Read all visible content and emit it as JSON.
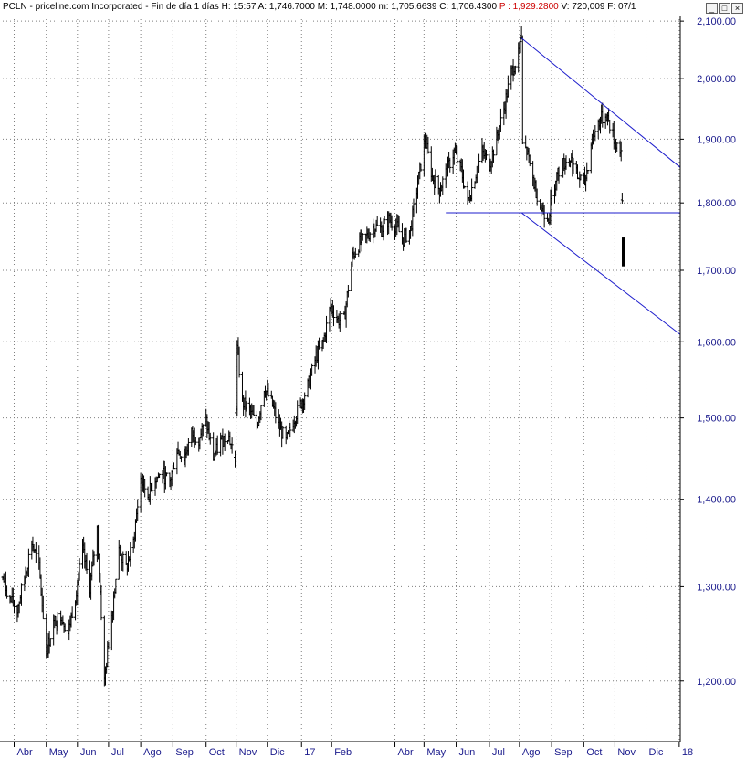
{
  "titlebar": {
    "symbol": "PCLN",
    "company": "priceline.com Incorporated",
    "period": "Fin de día 1 días",
    "hour_label": "H:",
    "hour": "15:57",
    "a_label": "A:",
    "a": "1,746.7000",
    "m_label": "M:",
    "m": "1,748.0000",
    "mm_label": "m:",
    "mm": "1,705.6639",
    "c_label": "C:",
    "c": "1,706.4300",
    "p_label": "P :",
    "p": "1,929.2800",
    "v_label": "V:",
    "v": "720,009",
    "f_label": "F:",
    "f": "07/1",
    "buttons": [
      "_",
      "□",
      "×"
    ]
  },
  "colors": {
    "axis_text": "#1a1a8c",
    "grid": "#7f7f7f",
    "price": "#000000",
    "trendline": "#1c1ccc",
    "background": "#ffffff"
  },
  "chart_data": {
    "type": "line",
    "subtype": "daily OHLC bars",
    "y_scale": "log",
    "ylim": [
      1140,
      2110
    ],
    "yticks": [
      {
        "value": 1200,
        "label": "1,200.00"
      },
      {
        "value": 1300,
        "label": "1,300.00"
      },
      {
        "value": 1400,
        "label": "1,400.00"
      },
      {
        "value": 1500,
        "label": "1,500.00"
      },
      {
        "value": 1600,
        "label": "1,600.00"
      },
      {
        "value": 1700,
        "label": "1,700.00"
      },
      {
        "value": 1800,
        "label": "1,800.00"
      },
      {
        "value": 1900,
        "label": "1,900.00"
      },
      {
        "value": 2000,
        "label": "2,000.00"
      },
      {
        "value": 2100,
        "label": "2,100.00"
      }
    ],
    "xlim": [
      "2016-03-21",
      "2018-01-03"
    ],
    "xticks": [
      {
        "date": "2016-04-01",
        "label": "Abr"
      },
      {
        "date": "2016-05-02",
        "label": "May"
      },
      {
        "date": "2016-06-01",
        "label": "Jun"
      },
      {
        "date": "2016-07-01",
        "label": "Jul"
      },
      {
        "date": "2016-08-01",
        "label": "Ago"
      },
      {
        "date": "2016-09-01",
        "label": "Sep"
      },
      {
        "date": "2016-10-03",
        "label": "Oct"
      },
      {
        "date": "2016-11-01",
        "label": "Nov"
      },
      {
        "date": "2016-12-01",
        "label": "Dic"
      },
      {
        "date": "2017-01-03",
        "label": "17"
      },
      {
        "date": "2017-02-01",
        "label": "Feb"
      },
      {
        "date": "2017-04-03",
        "label": "Abr"
      },
      {
        "date": "2017-05-01",
        "label": "May"
      },
      {
        "date": "2017-06-01",
        "label": "Jun"
      },
      {
        "date": "2017-07-03",
        "label": "Jul"
      },
      {
        "date": "2017-08-01",
        "label": "Ago"
      },
      {
        "date": "2017-09-01",
        "label": "Sep"
      },
      {
        "date": "2017-10-02",
        "label": "Oct"
      },
      {
        "date": "2017-11-01",
        "label": "Nov"
      },
      {
        "date": "2017-12-01",
        "label": "Dic"
      },
      {
        "date": "2018-01-02",
        "label": "18"
      }
    ],
    "grid": true,
    "series": [
      {
        "points": [
          [
            "2016-03-21",
            1310
          ],
          [
            "2016-03-28",
            1285
          ],
          [
            "2016-04-04",
            1275
          ],
          [
            "2016-04-11",
            1310
          ],
          [
            "2016-04-18",
            1350
          ],
          [
            "2016-04-25",
            1320
          ],
          [
            "2016-05-02",
            1230
          ],
          [
            "2016-05-09",
            1260
          ],
          [
            "2016-05-16",
            1270
          ],
          [
            "2016-05-23",
            1250
          ],
          [
            "2016-05-30",
            1290
          ],
          [
            "2016-06-06",
            1340
          ],
          [
            "2016-06-13",
            1300
          ],
          [
            "2016-06-20",
            1365
          ],
          [
            "2016-06-27",
            1200
          ],
          [
            "2016-07-04",
            1270
          ],
          [
            "2016-07-11",
            1340
          ],
          [
            "2016-07-18",
            1320
          ],
          [
            "2016-07-25",
            1350
          ],
          [
            "2016-08-01",
            1425
          ],
          [
            "2016-08-08",
            1405
          ],
          [
            "2016-08-15",
            1425
          ],
          [
            "2016-08-22",
            1430
          ],
          [
            "2016-08-29",
            1420
          ],
          [
            "2016-09-05",
            1460
          ],
          [
            "2016-09-12",
            1450
          ],
          [
            "2016-09-19",
            1480
          ],
          [
            "2016-09-26",
            1475
          ],
          [
            "2016-10-03",
            1495
          ],
          [
            "2016-10-10",
            1450
          ],
          [
            "2016-10-17",
            1470
          ],
          [
            "2016-10-24",
            1480
          ],
          [
            "2016-10-31",
            1450
          ],
          [
            "2016-11-02",
            1590
          ],
          [
            "2016-11-07",
            1520
          ],
          [
            "2016-11-14",
            1510
          ],
          [
            "2016-11-21",
            1490
          ],
          [
            "2016-11-28",
            1540
          ],
          [
            "2016-12-05",
            1520
          ],
          [
            "2016-12-12",
            1490
          ],
          [
            "2016-12-19",
            1470
          ],
          [
            "2016-12-27",
            1500
          ],
          [
            "2017-01-03",
            1520
          ],
          [
            "2017-01-10",
            1545
          ],
          [
            "2017-01-17",
            1580
          ],
          [
            "2017-01-24",
            1600
          ],
          [
            "2017-01-31",
            1650
          ],
          [
            "2017-02-07",
            1630
          ],
          [
            "2017-02-13",
            1630
          ],
          [
            "2017-02-21",
            1720
          ],
          [
            "2017-02-28",
            1740
          ],
          [
            "2017-03-07",
            1750
          ],
          [
            "2017-03-14",
            1765
          ],
          [
            "2017-03-21",
            1760
          ],
          [
            "2017-03-28",
            1775
          ],
          [
            "2017-04-04",
            1765
          ],
          [
            "2017-04-11",
            1745
          ],
          [
            "2017-04-18",
            1760
          ],
          [
            "2017-04-25",
            1830
          ],
          [
            "2017-05-02",
            1900
          ],
          [
            "2017-05-09",
            1840
          ],
          [
            "2017-05-16",
            1820
          ],
          [
            "2017-05-23",
            1850
          ],
          [
            "2017-05-30",
            1880
          ],
          [
            "2017-06-06",
            1850
          ],
          [
            "2017-06-12",
            1800
          ],
          [
            "2017-06-19",
            1840
          ],
          [
            "2017-06-26",
            1880
          ],
          [
            "2017-07-03",
            1860
          ],
          [
            "2017-07-10",
            1900
          ],
          [
            "2017-07-17",
            1950
          ],
          [
            "2017-07-24",
            2010
          ],
          [
            "2017-07-31",
            2040
          ],
          [
            "2017-08-03",
            2060
          ],
          [
            "2017-08-04",
            1890
          ],
          [
            "2017-08-08",
            1880
          ],
          [
            "2017-08-15",
            1830
          ],
          [
            "2017-08-22",
            1790
          ],
          [
            "2017-08-29",
            1780
          ],
          [
            "2017-09-05",
            1840
          ],
          [
            "2017-09-12",
            1860
          ],
          [
            "2017-09-19",
            1870
          ],
          [
            "2017-09-26",
            1840
          ],
          [
            "2017-10-03",
            1830
          ],
          [
            "2017-10-10",
            1900
          ],
          [
            "2017-10-17",
            1930
          ],
          [
            "2017-10-24",
            1940
          ],
          [
            "2017-10-31",
            1900
          ],
          [
            "2017-11-07",
            1880
          ],
          [
            "2017-11-09",
            1726
          ]
        ]
      }
    ],
    "trendlines": [
      {
        "from": [
          "2017-08-03",
          2070
        ],
        "to": [
          "2018-01-03",
          1855
        ]
      },
      {
        "from": [
          "2017-08-03",
          1785
        ],
        "to": [
          "2018-01-03",
          1610
        ]
      },
      {
        "from": [
          "2017-05-22",
          1785
        ],
        "to": [
          "2018-01-03",
          1785
        ]
      }
    ]
  }
}
